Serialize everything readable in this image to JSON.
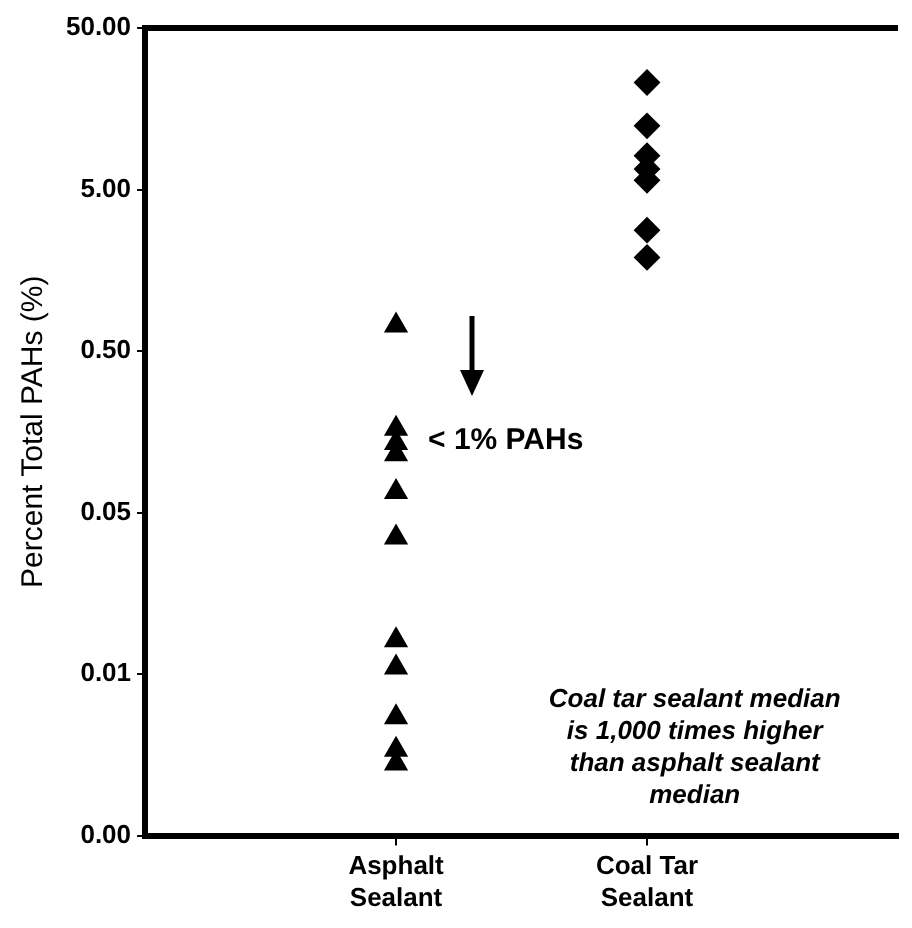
{
  "chart_data": {
    "type": "scatter",
    "ylabel": "Percent Total PAHs (%)",
    "categories": [
      null,
      "Asphalt Sealant",
      "Coal Tar Sealant",
      null
    ],
    "series": [
      {
        "type": "scatter",
        "marker": "triangle",
        "color": "#000000",
        "x": [
          "Asphalt Sealant",
          "Asphalt Sealant",
          "Asphalt Sealant",
          "Asphalt Sealant",
          "Asphalt Sealant",
          "Asphalt Sealant",
          "Asphalt Sealant",
          "Asphalt Sealant",
          "Asphalt Sealant",
          "Asphalt Sealant",
          "Asphalt Sealant"
        ],
        "values": [
          0.72,
          0.165,
          0.135,
          0.115,
          0.067,
          0.035,
          0.0081,
          0.0055,
          0.0027,
          0.0017,
          0.0014
        ]
      },
      {
        "type": "scatter",
        "marker": "diamond",
        "color": "#000000",
        "x": [
          "Coal Tar Sealant",
          "Coal Tar Sealant",
          "Coal Tar Sealant",
          "Coal Tar Sealant",
          "Coal Tar Sealant",
          "Coal Tar Sealant",
          "Coal Tar Sealant"
        ],
        "values": [
          23,
          12.4,
          8.1,
          6.7,
          5.7,
          2.8,
          1.9
        ]
      }
    ],
    "log": "y",
    "ylim": [
      0.0005,
      50
    ],
    "yticks": [
      {
        "value": 50,
        "label": "50.00"
      },
      {
        "value": 5,
        "label": "5.00"
      },
      {
        "value": 0.5,
        "label": "0.50"
      },
      0.05,
      {
        "value": 0.005,
        "label": "0.01"
      },
      {
        "value": 0.0005,
        "label": "0.00"
      }
    ],
    "grid": false,
    "legend": false,
    "annotations": [
      {
        "text": "< 1% PAHs",
        "x": "Asphalt Sealant",
        "y": 0.14
      },
      "Coal tar sealant median is 1,000 times higher than asphalt sealant median"
    ]
  }
}
